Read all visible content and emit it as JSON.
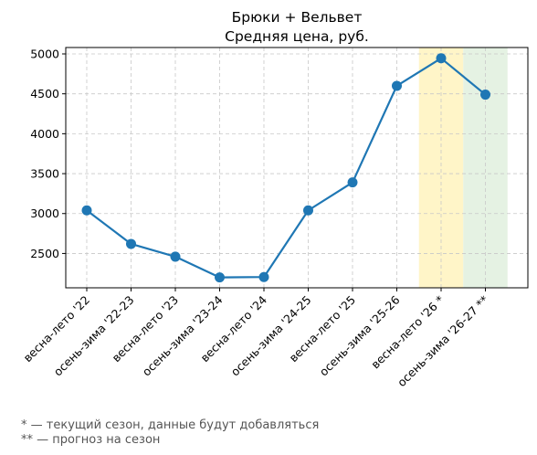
{
  "chart_data": {
    "type": "line",
    "title": "Брюки + Вельвет",
    "subtitle": "Средняя цена, руб.",
    "xlabel": "",
    "ylabel": "",
    "categories": [
      "весна-лето '22",
      "осень-зима '22-23",
      "весна-лето '23",
      "осень-зима '23-24",
      "весна-лето '24",
      "осень-зима '24-25",
      "весна-лето '25",
      "осень-зима '25-26",
      "весна-лето '26 *",
      "осень-зима '26-27 **"
    ],
    "series": [
      {
        "values": [
          3040,
          2620,
          2460,
          2200,
          2205,
          3040,
          3390,
          4600,
          4945,
          4490
        ],
        "color": "#1f77b4"
      }
    ],
    "ylim": [
      2070,
      5080
    ],
    "yticks": [
      2500,
      3000,
      3500,
      4000,
      4500,
      5000
    ],
    "grid": true,
    "highlights": [
      {
        "category_index": 8,
        "color": "#fff5c8",
        "meaning": "current-season"
      },
      {
        "category_index": 9,
        "color": "#e5f2e3",
        "meaning": "forecast"
      }
    ],
    "footnotes": [
      "* — текущий сезон, данные будут добавляться",
      "** — прогноз на сезон"
    ]
  }
}
